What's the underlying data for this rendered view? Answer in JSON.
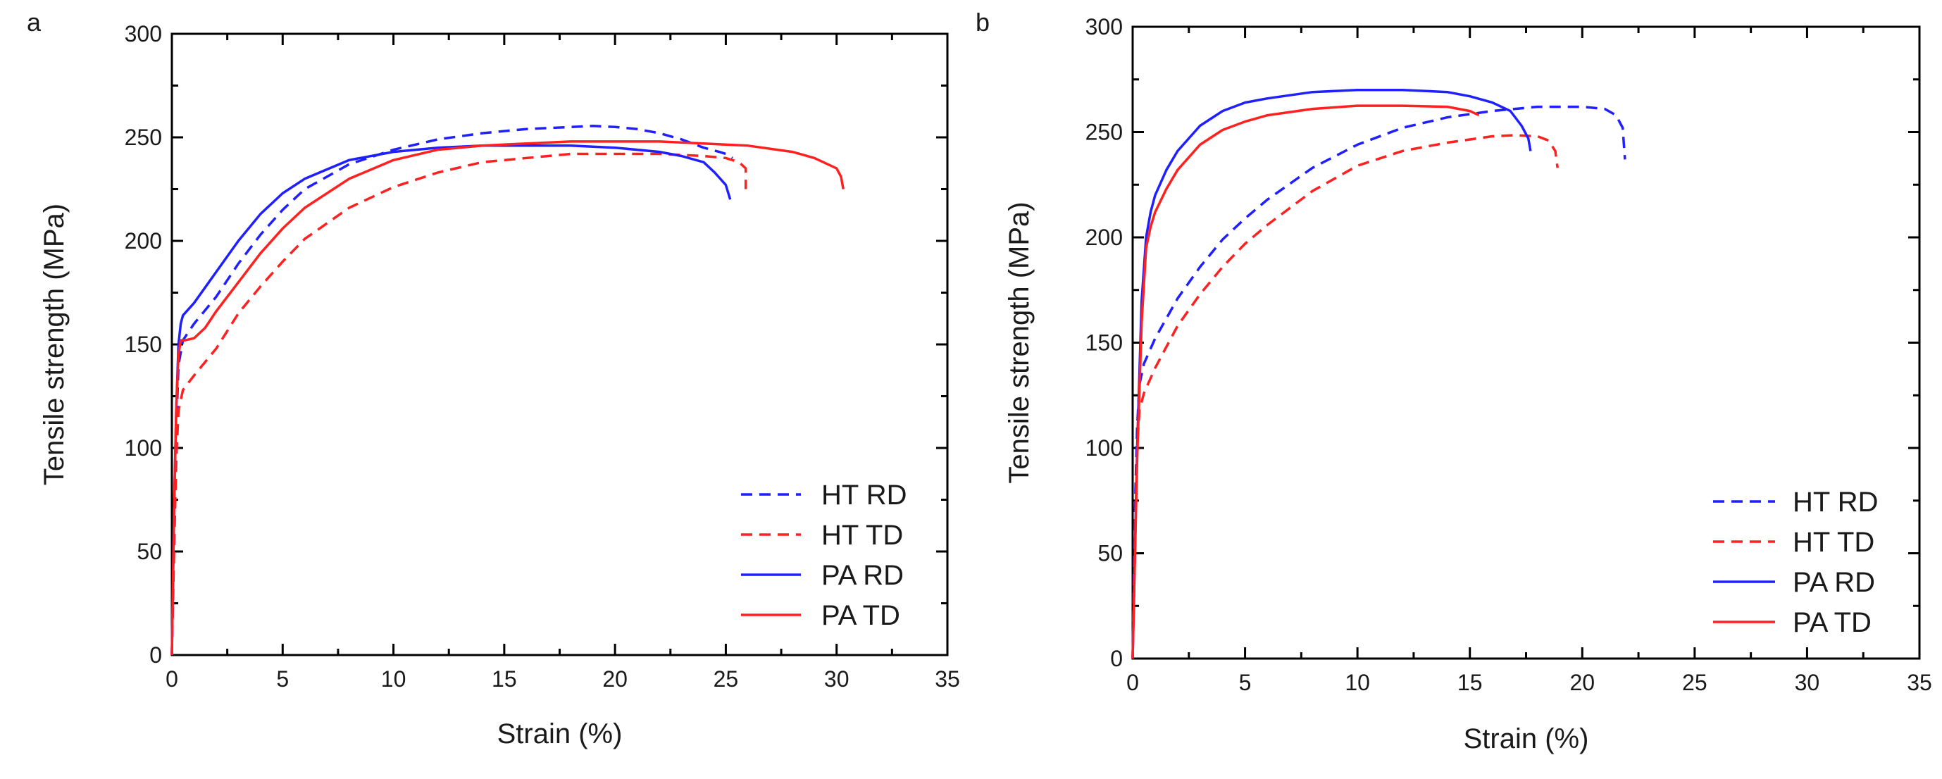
{
  "chart_data": [
    {
      "panel": "a",
      "type": "line",
      "xlabel": "Strain (%)",
      "ylabel": "Tensile strength (MPa)",
      "xlim": [
        0,
        35
      ],
      "ylim": [
        0,
        300
      ],
      "xticks": [
        0,
        5,
        10,
        15,
        20,
        25,
        30,
        35
      ],
      "yticks": [
        0,
        50,
        100,
        150,
        200,
        250,
        300
      ],
      "legend_position": "bottom-right",
      "series": [
        {
          "name": "HT RD",
          "color": "#1f1fff",
          "dash": "dashed",
          "x": [
            0,
            0.1,
            0.2,
            0.3,
            0.5,
            1,
            2,
            3,
            4,
            5,
            6,
            8,
            10,
            12,
            14,
            16,
            18,
            19,
            20,
            21,
            22,
            23,
            24,
            24.7,
            25,
            25.3
          ],
          "y": [
            0,
            60,
            110,
            140,
            152,
            160,
            173,
            189,
            203,
            215,
            225,
            237,
            244,
            249,
            252,
            254,
            255,
            255.5,
            255,
            254,
            252,
            249,
            245,
            243,
            242,
            240
          ]
        },
        {
          "name": "HT TD",
          "color": "#ff2020",
          "dash": "dashed",
          "x": [
            0,
            0.1,
            0.2,
            0.3,
            0.5,
            1,
            2,
            3,
            4,
            5,
            6,
            8,
            10,
            12,
            14,
            16,
            18,
            20,
            22,
            24,
            25,
            25.6,
            25.9,
            25.9
          ],
          "y": [
            0,
            50,
            95,
            118,
            128,
            135,
            148,
            165,
            178,
            190,
            201,
            216,
            226,
            233,
            238,
            240,
            242,
            242,
            242,
            241,
            240,
            238,
            235,
            225
          ]
        },
        {
          "name": "PA RD",
          "color": "#1f1fff",
          "dash": "solid",
          "x": [
            0,
            0.1,
            0.2,
            0.3,
            0.4,
            0.5,
            1,
            2,
            3,
            4,
            5,
            6,
            8,
            10,
            12,
            14,
            16,
            18,
            20,
            22,
            23,
            24,
            24.5,
            25,
            25.2
          ],
          "y": [
            0,
            70,
            120,
            150,
            160,
            164,
            170,
            185,
            200,
            213,
            223,
            230,
            239,
            243,
            245,
            246,
            246,
            246,
            245,
            243,
            241,
            238,
            233,
            227,
            220
          ]
        },
        {
          "name": "PA TD",
          "color": "#ff2020",
          "dash": "solid",
          "x": [
            0,
            0.1,
            0.2,
            0.3,
            0.4,
            0.6,
            1,
            1.5,
            2,
            3,
            4,
            5,
            6,
            8,
            10,
            12,
            14,
            16,
            18,
            20,
            22,
            24,
            26,
            28,
            29,
            30,
            30.2,
            30.3
          ],
          "y": [
            0,
            70,
            120,
            145,
            152,
            152,
            153,
            158,
            166,
            180,
            194,
            206,
            216,
            230,
            239,
            244,
            246,
            247,
            248,
            248,
            248,
            247,
            246,
            243,
            240,
            235,
            231,
            225
          ]
        }
      ]
    },
    {
      "panel": "b",
      "type": "line",
      "xlabel": "Strain (%)",
      "ylabel": "Tensile strength (MPa)",
      "xlim": [
        0,
        35
      ],
      "ylim": [
        0,
        300
      ],
      "xticks": [
        0,
        5,
        10,
        15,
        20,
        25,
        30,
        35
      ],
      "yticks": [
        0,
        50,
        100,
        150,
        200,
        250,
        300
      ],
      "legend_position": "bottom-right",
      "series": [
        {
          "name": "HT RD",
          "color": "#1f1fff",
          "dash": "dashed",
          "x": [
            0,
            0.1,
            0.2,
            0.3,
            0.5,
            1,
            2,
            3,
            4,
            5,
            6,
            8,
            10,
            12,
            14,
            16,
            18,
            20,
            21,
            21.5,
            21.8,
            21.9
          ],
          "y": [
            0,
            70,
            110,
            130,
            140,
            152,
            171,
            186,
            199,
            209,
            218,
            233,
            244,
            252,
            257,
            260,
            262,
            262,
            261,
            258,
            252,
            237
          ]
        },
        {
          "name": "HT TD",
          "color": "#ff2020",
          "dash": "dashed",
          "x": [
            0,
            0.1,
            0.2,
            0.3,
            0.5,
            1,
            2,
            3,
            4,
            5,
            6,
            8,
            10,
            12,
            14,
            16,
            17,
            18,
            18.5,
            18.8,
            18.9
          ],
          "y": [
            0,
            60,
            100,
            118,
            126,
            138,
            158,
            173,
            186,
            197,
            206,
            222,
            234,
            241,
            245,
            248,
            248.5,
            248,
            246,
            241,
            233
          ]
        },
        {
          "name": "PA RD",
          "color": "#1f1fff",
          "dash": "solid",
          "x": [
            0,
            0.2,
            0.4,
            0.6,
            0.8,
            1,
            1.5,
            2,
            3,
            4,
            5,
            6,
            8,
            10,
            12,
            14,
            15,
            16,
            16.8,
            17.3,
            17.6,
            17.7
          ],
          "y": [
            0,
            100,
            170,
            200,
            212,
            220,
            232,
            241,
            253,
            260,
            264,
            266,
            269,
            270,
            270,
            269,
            267,
            264,
            260,
            253,
            247,
            241
          ]
        },
        {
          "name": "PA TD",
          "color": "#ff2020",
          "dash": "solid",
          "x": [
            0,
            0.2,
            0.4,
            0.6,
            0.8,
            1,
            1.5,
            2,
            3,
            4,
            5,
            6,
            8,
            10,
            12,
            14,
            15,
            15.4
          ],
          "y": [
            0,
            95,
            160,
            195,
            205,
            212,
            223,
            232,
            244,
            251,
            255,
            258,
            261,
            262.5,
            262.5,
            262,
            260,
            258
          ]
        }
      ]
    }
  ]
}
